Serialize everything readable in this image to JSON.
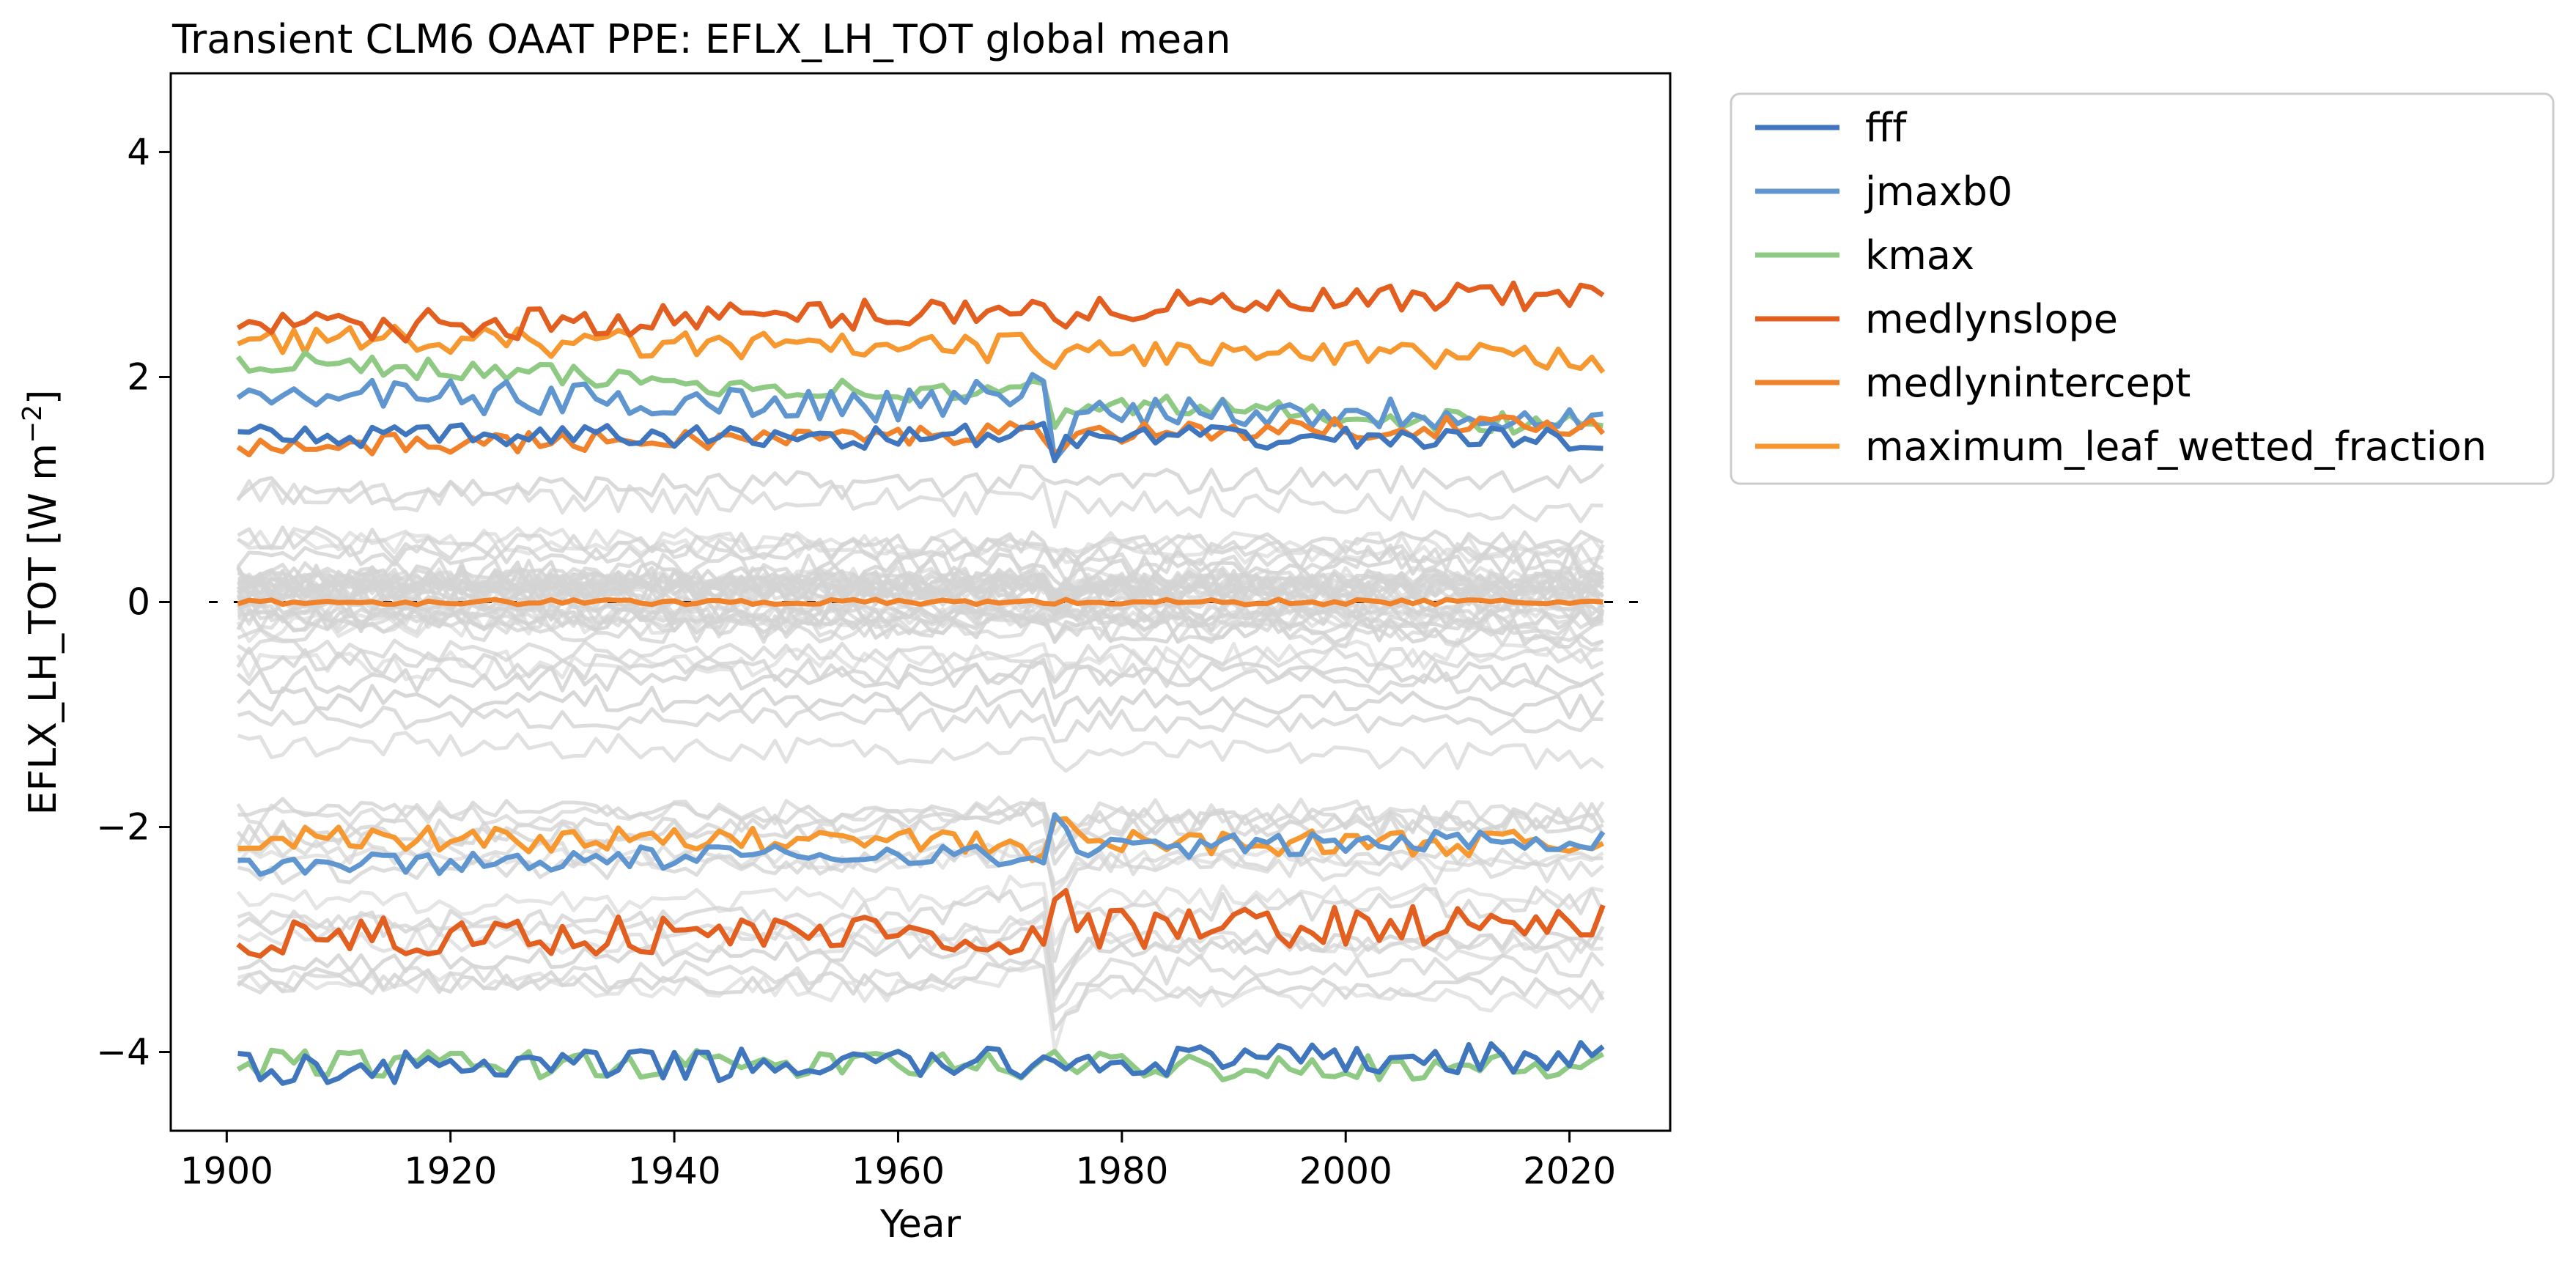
{
  "chart_data": {
    "type": "line",
    "title": "Transient CLM6 OAAT PPE: EFLX_LH_TOT global mean",
    "xlabel": "Year",
    "ylabel_main": "EFLX_LH_TOT [W m",
    "ylabel_sup": "−2",
    "ylabel_close": "]",
    "xlim": [
      1895,
      2029
    ],
    "ylim": [
      -4.7,
      4.7
    ],
    "xticks": [
      1900,
      1920,
      1940,
      1960,
      1980,
      2000,
      2020
    ],
    "yticks": [
      -4,
      -2,
      0,
      2,
      4
    ],
    "ytick_labels": [
      "−4",
      "−2",
      "0",
      "2",
      "4"
    ],
    "x_start": 1901,
    "x_end": 2023,
    "grid": false,
    "legend_position": "outside-upper-right",
    "zero_line": {
      "y": 0,
      "style": "dashed",
      "color": "#000000"
    },
    "background_ensemble": {
      "color": "#d4d4d4",
      "count": 58,
      "range": [
        -3.6,
        1.3
      ]
    },
    "series": [
      {
        "name": "fff",
        "color": "#3f76bd",
        "values_approx": {
          "high": 1.45,
          "low": -4.05
        }
      },
      {
        "name": "jmaxb0",
        "color": "#6096cf",
        "values_approx": {
          "high": 1.75,
          "low": -2.3
        }
      },
      {
        "name": "kmax",
        "color": "#8fca85",
        "values_approx": {
          "high": 1.9,
          "low": -4.15
        }
      },
      {
        "name": "medlynslope",
        "color": "#e35f20",
        "values_approx": {
          "high": 2.6,
          "low": -2.9
        }
      },
      {
        "name": "medlynintercept",
        "color": "#f0822b",
        "values_approx": {
          "high": 1.45,
          "low": 0.0
        }
      },
      {
        "name": "maximum_leaf_wetted_fraction",
        "color": "#f6982f",
        "values_approx": {
          "high": 2.3,
          "low": -2.1
        }
      }
    ]
  }
}
